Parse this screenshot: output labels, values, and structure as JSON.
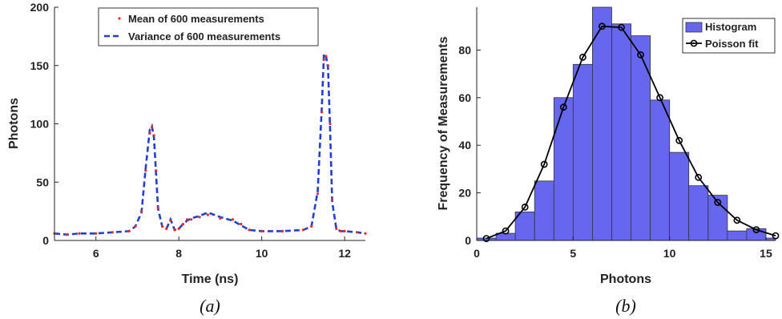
{
  "chart_data": [
    {
      "type": "line",
      "panel_label": "(a)",
      "xlabel": "Time (ns)",
      "ylabel": "Photons",
      "xlim": [
        5,
        12.5
      ],
      "ylim": [
        0,
        200
      ],
      "xticks": [
        6,
        8,
        10,
        12
      ],
      "yticks": [
        0,
        50,
        100,
        150,
        200
      ],
      "grid": false,
      "legend_position": "top-center",
      "series": [
        {
          "name": "Mean of 600 measurements",
          "style": "dots",
          "color": "#e8282b",
          "x": [
            5.0,
            5.3,
            5.6,
            6.0,
            6.4,
            6.8,
            6.95,
            7.1,
            7.2,
            7.3,
            7.35,
            7.4,
            7.45,
            7.5,
            7.6,
            7.7,
            7.8,
            7.9,
            8.0,
            8.1,
            8.2,
            8.3,
            8.5,
            8.7,
            9.0,
            9.3,
            9.5,
            9.7,
            10.0,
            10.5,
            11.0,
            11.2,
            11.35,
            11.45,
            11.5,
            11.55,
            11.6,
            11.65,
            11.7,
            11.8,
            11.9,
            12.0,
            12.3,
            12.5
          ],
          "y": [
            6,
            5,
            6,
            6,
            7,
            8,
            12,
            25,
            60,
            92,
            97,
            90,
            60,
            28,
            12,
            10,
            17,
            9,
            10,
            14,
            18,
            18,
            20,
            22,
            19,
            18,
            14,
            9,
            8,
            8,
            9,
            12,
            40,
            110,
            155,
            158,
            150,
            100,
            35,
            10,
            8,
            8,
            7,
            6
          ]
        },
        {
          "name": "Variance of 600 measurements",
          "style": "dashed",
          "color": "#1f3fd8",
          "x": [
            5.0,
            5.3,
            5.6,
            6.0,
            6.4,
            6.8,
            6.95,
            7.1,
            7.2,
            7.3,
            7.35,
            7.4,
            7.45,
            7.5,
            7.6,
            7.7,
            7.8,
            7.9,
            8.0,
            8.1,
            8.2,
            8.3,
            8.5,
            8.7,
            9.0,
            9.3,
            9.5,
            9.7,
            10.0,
            10.5,
            11.0,
            11.2,
            11.35,
            11.45,
            11.5,
            11.55,
            11.6,
            11.65,
            11.7,
            11.8,
            11.9,
            12.0,
            12.3,
            12.5
          ],
          "y": [
            6,
            5,
            6,
            6,
            7,
            8,
            12,
            24,
            62,
            95,
            98,
            88,
            58,
            27,
            12,
            10,
            18,
            9,
            10,
            14,
            17,
            19,
            21,
            24,
            20,
            17,
            13,
            9,
            8,
            8,
            9,
            12,
            42,
            115,
            160,
            158,
            148,
            95,
            33,
            10,
            8,
            8,
            7,
            6
          ]
        }
      ]
    },
    {
      "type": "bar",
      "panel_label": "(b)",
      "xlabel": "Photons",
      "ylabel": "Frequency of Measurements",
      "xlim": [
        0,
        15.5
      ],
      "ylim": [
        0,
        98
      ],
      "xticks": [
        0,
        5,
        10,
        15
      ],
      "yticks": [
        0,
        20,
        40,
        60,
        80
      ],
      "grid": false,
      "legend_position": "top-right",
      "bin_width": 1,
      "series": [
        {
          "name": "Histogram",
          "style": "bars",
          "color": "#6667ee",
          "x": [
            0.5,
            1.5,
            2.5,
            3.5,
            4.5,
            5.5,
            6.5,
            7.5,
            8.5,
            9.5,
            10.5,
            11.5,
            12.5,
            13.5,
            14.5,
            15.5
          ],
          "values": [
            1,
            3,
            12,
            25,
            60,
            74,
            98,
            91,
            86,
            59,
            37,
            23,
            19,
            4,
            5,
            1
          ]
        },
        {
          "name": "Poisson fit",
          "style": "line-circles",
          "color": "#000000",
          "x": [
            0.5,
            1.5,
            2.5,
            3.5,
            4.5,
            5.5,
            6.5,
            7.5,
            8.5,
            9.5,
            10.5,
            11.5,
            12.5,
            13.5,
            14.5,
            15.5
          ],
          "values": [
            0.8,
            4,
            14,
            32,
            56,
            77,
            90,
            89.5,
            78,
            60,
            42,
            26.5,
            16,
            8.5,
            4.5,
            2
          ]
        }
      ]
    }
  ]
}
